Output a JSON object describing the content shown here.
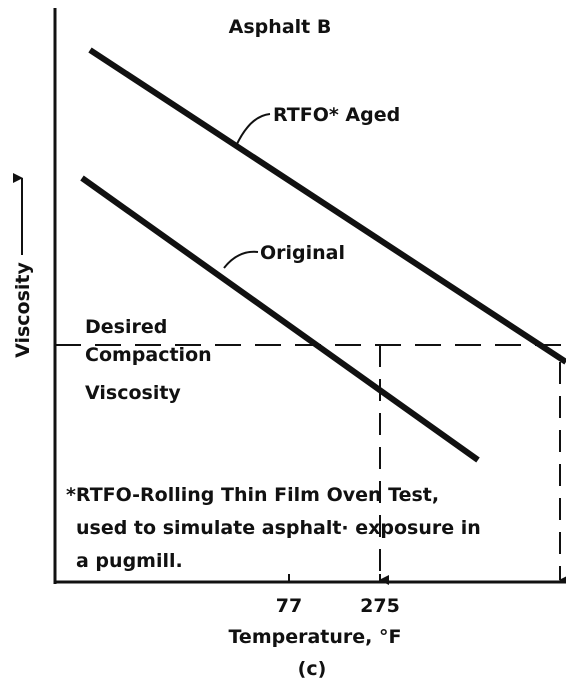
{
  "title": "Asphalt B",
  "curves": {
    "aged": "RTFO* Aged",
    "original": "Original"
  },
  "desired": [
    "Desired",
    "Compaction",
    "Viscosity"
  ],
  "y_axis_label": "Viscosity",
  "footnote": [
    "*RTFO-Rolling Thin Film Oven Test,",
    "used to simulate asphalt· exposure in",
    "a pugmill."
  ],
  "x_ticks": [
    "77",
    "275"
  ],
  "x_axis_label": "Temperature, °F",
  "panel": "(c)"
}
